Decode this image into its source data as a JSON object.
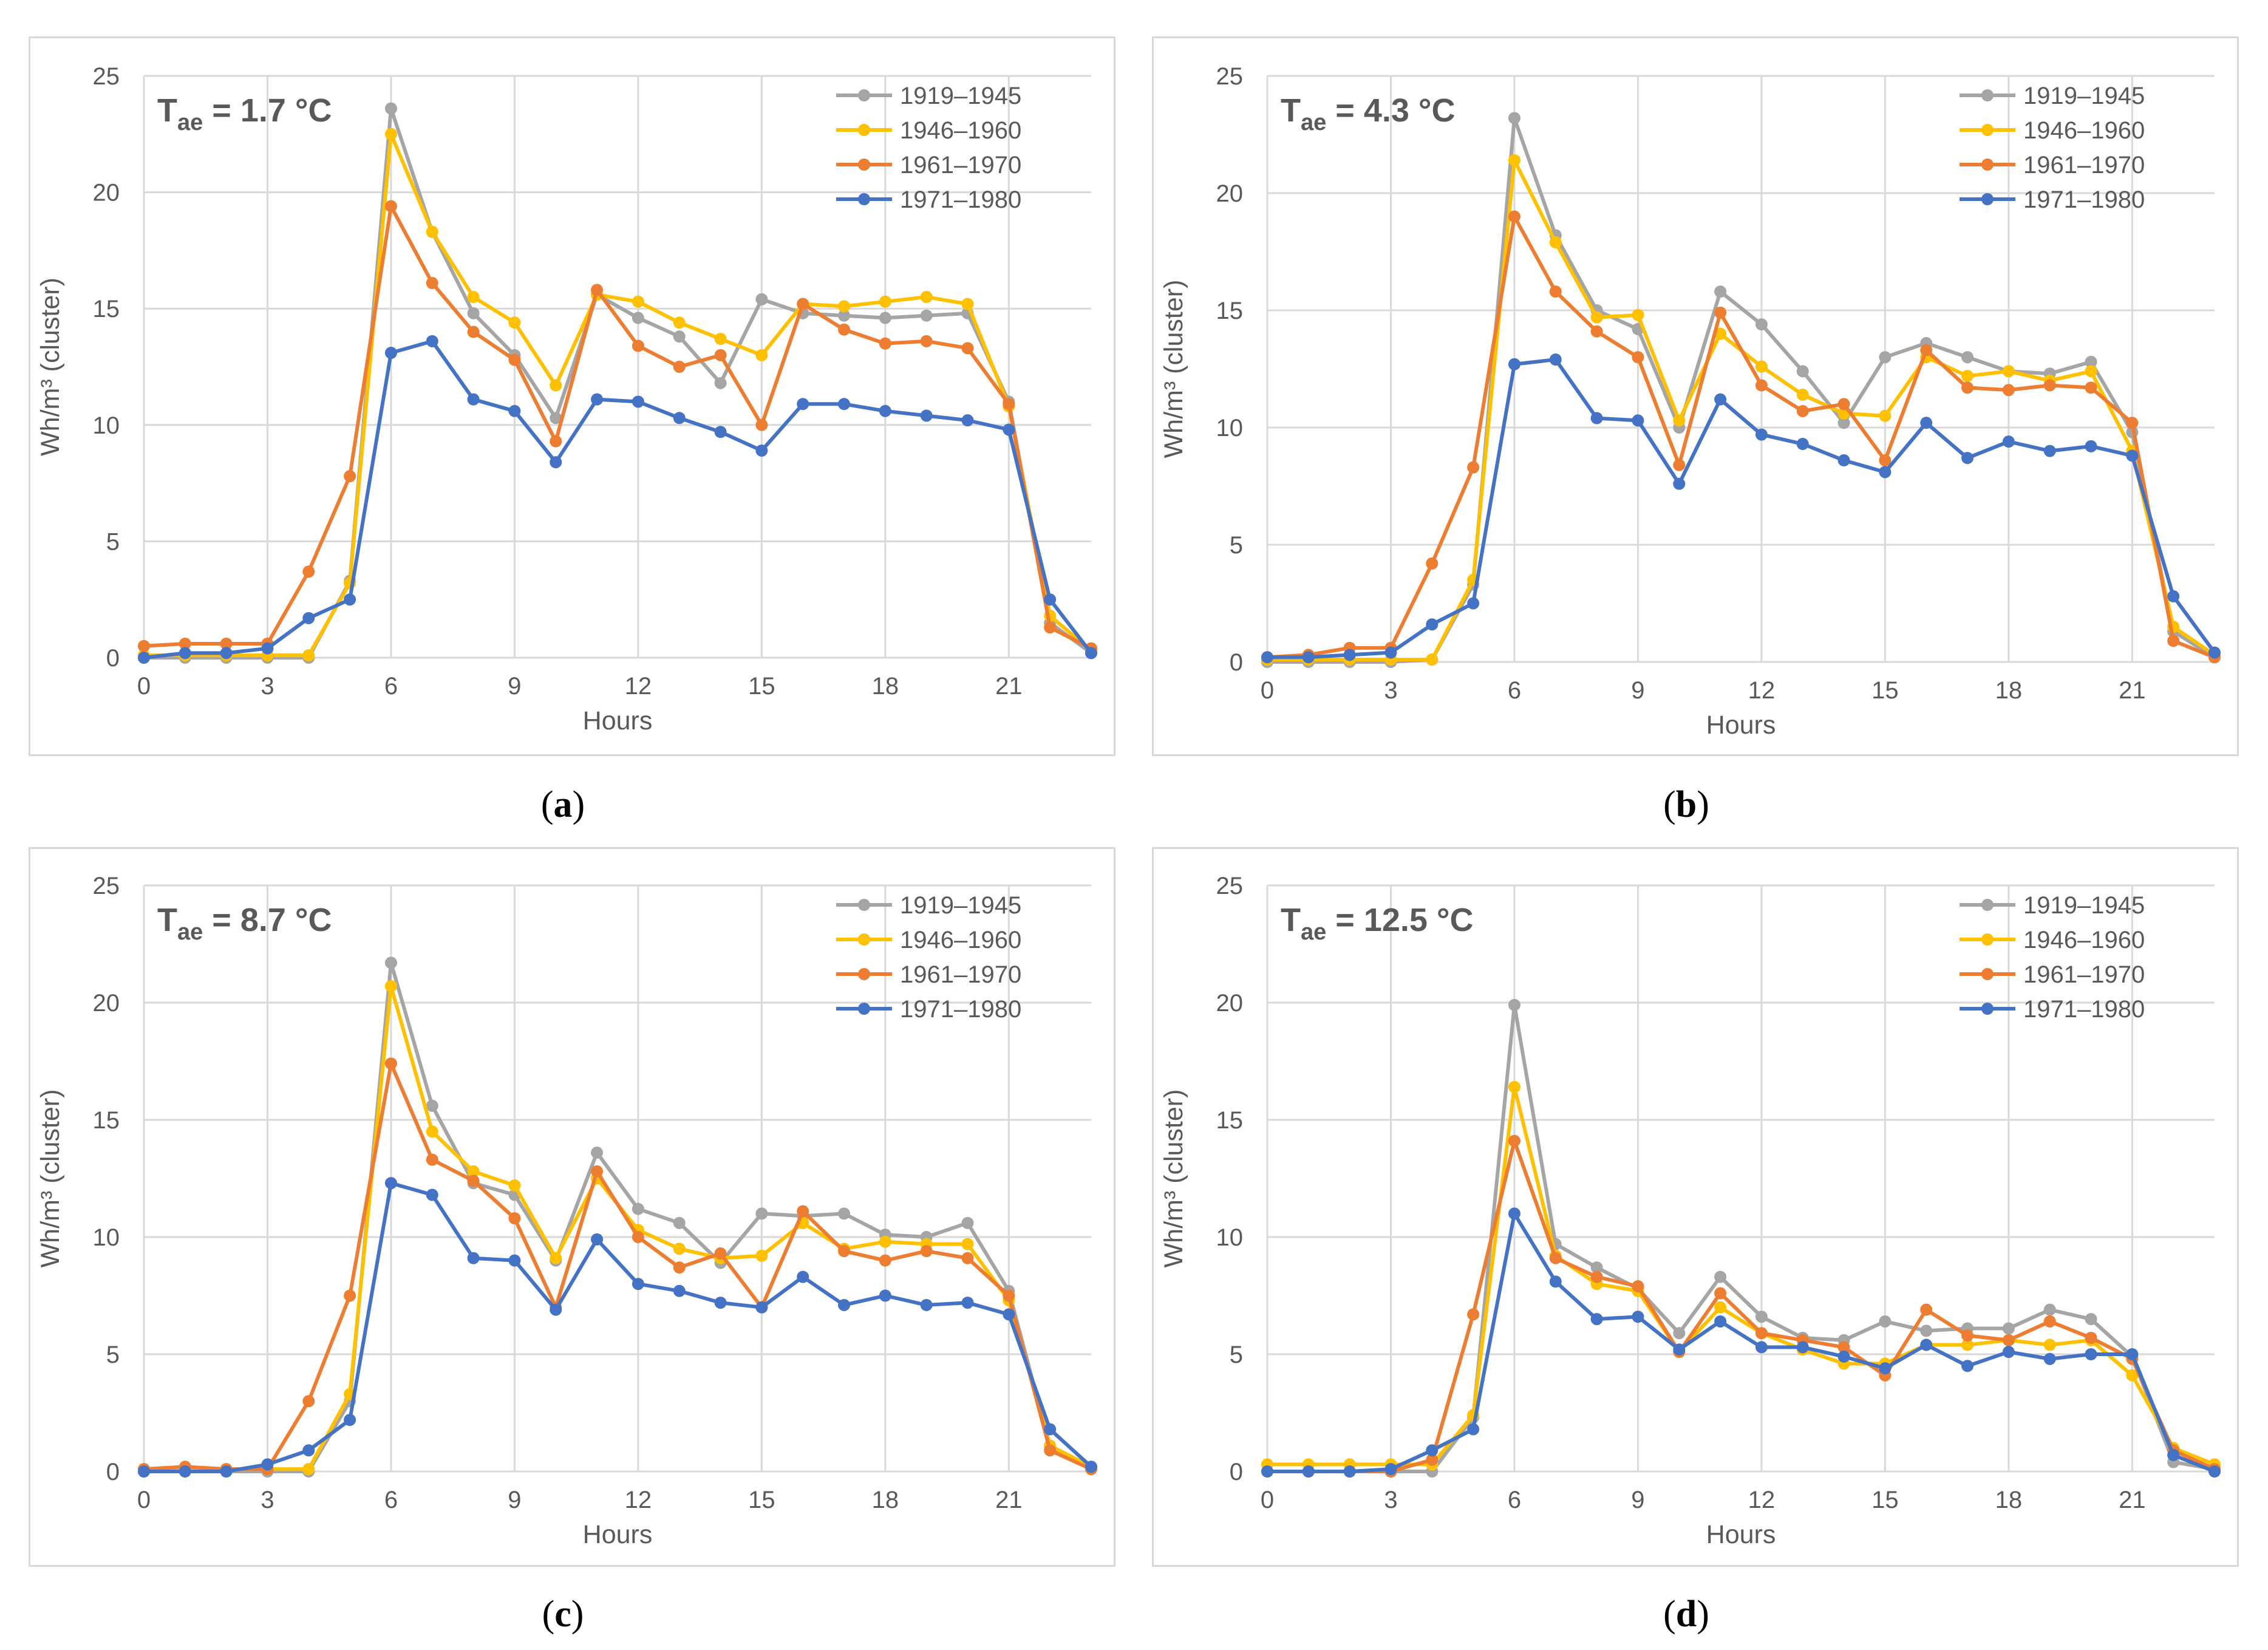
{
  "chart_data": [
    {
      "type": "line",
      "caption": "a",
      "annotation": {
        "main": "T",
        "sub": "ae",
        "rest": " = 1.7 °C"
      },
      "xlabel": "Hours",
      "ylabel": "Wh/m³ (cluster)",
      "ylim": [
        0,
        25
      ],
      "yticks": [
        0,
        5,
        10,
        15,
        20,
        25
      ],
      "xlim": [
        0,
        23
      ],
      "xticks": [
        0,
        3,
        6,
        9,
        12,
        15,
        18,
        21
      ],
      "grid": true,
      "legend": "top-right",
      "x": [
        0,
        1,
        2,
        3,
        4,
        5,
        6,
        7,
        8,
        9,
        10,
        11,
        12,
        13,
        14,
        15,
        16,
        17,
        18,
        19,
        20,
        21,
        22,
        23
      ],
      "series": [
        {
          "name": "1919–1945",
          "color": "#a5a5a5",
          "values": [
            0.0,
            0.0,
            0.0,
            0.0,
            0.0,
            3.3,
            23.6,
            18.3,
            14.8,
            13.0,
            10.3,
            15.6,
            14.6,
            13.8,
            11.8,
            15.4,
            14.8,
            14.7,
            14.6,
            14.7,
            14.8,
            11.0,
            1.5,
            0.2
          ]
        },
        {
          "name": "1946–1960",
          "color": "#ffc000",
          "values": [
            0.1,
            0.1,
            0.1,
            0.1,
            0.1,
            3.2,
            22.5,
            18.3,
            15.5,
            14.4,
            11.7,
            15.6,
            15.3,
            14.4,
            13.7,
            13.0,
            15.2,
            15.1,
            15.3,
            15.5,
            15.2,
            10.8,
            1.8,
            0.3
          ]
        },
        {
          "name": "1961–1970",
          "color": "#ed7d31",
          "values": [
            0.5,
            0.6,
            0.6,
            0.6,
            3.7,
            7.8,
            19.4,
            16.1,
            14.0,
            12.8,
            9.3,
            15.8,
            13.4,
            12.5,
            13.0,
            10.0,
            15.2,
            14.1,
            13.5,
            13.6,
            13.3,
            10.9,
            1.3,
            0.4
          ]
        },
        {
          "name": "1971–1980",
          "color": "#4472c4",
          "values": [
            0.0,
            0.2,
            0.2,
            0.4,
            1.7,
            2.5,
            13.1,
            13.6,
            11.1,
            10.6,
            8.4,
            11.1,
            11.0,
            10.3,
            9.7,
            8.9,
            10.9,
            10.9,
            10.6,
            10.4,
            10.2,
            9.8,
            2.5,
            0.2
          ]
        }
      ]
    },
    {
      "type": "line",
      "caption": "b",
      "annotation": {
        "main": "T",
        "sub": "ae",
        "rest": " = 4.3 °C"
      },
      "xlabel": "Hours",
      "ylabel": "Wh/m³ (cluster)",
      "ylim": [
        0,
        25
      ],
      "yticks": [
        0,
        5,
        10,
        15,
        20,
        25
      ],
      "xlim": [
        0,
        23
      ],
      "xticks": [
        0,
        3,
        6,
        9,
        12,
        15,
        18,
        21
      ],
      "grid": true,
      "legend": "top-right",
      "x": [
        0,
        1,
        2,
        3,
        4,
        5,
        6,
        7,
        8,
        9,
        10,
        11,
        12,
        13,
        14,
        15,
        16,
        17,
        18,
        19,
        20,
        21,
        22,
        23
      ],
      "series": [
        {
          "name": "1919–1945",
          "color": "#a5a5a5",
          "values": [
            0.0,
            0.0,
            0.0,
            0.0,
            0.1,
            3.3,
            23.2,
            18.2,
            15.0,
            14.2,
            10.0,
            15.8,
            14.4,
            12.4,
            10.2,
            13.0,
            13.6,
            13.0,
            12.4,
            12.3,
            12.8,
            9.8,
            1.3,
            0.2
          ]
        },
        {
          "name": "1946–1960",
          "color": "#ffc000",
          "values": [
            0.1,
            0.1,
            0.1,
            0.1,
            0.1,
            3.5,
            21.4,
            17.9,
            14.7,
            14.8,
            10.3,
            14.0,
            12.6,
            11.4,
            10.6,
            10.5,
            13.0,
            12.2,
            12.4,
            12.0,
            12.4,
            9.0,
            1.5,
            0.3
          ]
        },
        {
          "name": "1961–1970",
          "color": "#ed7d31",
          "values": [
            0.2,
            0.3,
            0.6,
            0.6,
            4.2,
            8.3,
            19.0,
            15.8,
            14.1,
            13.0,
            8.4,
            14.9,
            11.8,
            10.7,
            11.0,
            8.6,
            13.3,
            11.7,
            11.6,
            11.8,
            11.7,
            10.2,
            0.9,
            0.2
          ]
        },
        {
          "name": "1971–1980",
          "color": "#4472c4",
          "values": [
            0.2,
            0.2,
            0.3,
            0.4,
            1.6,
            2.5,
            12.7,
            12.9,
            10.4,
            10.3,
            7.6,
            11.2,
            9.7,
            9.3,
            8.6,
            8.1,
            10.2,
            8.7,
            9.4,
            9.0,
            9.2,
            8.8,
            2.8,
            0.4
          ]
        }
      ]
    },
    {
      "type": "line",
      "caption": "c",
      "annotation": {
        "main": "T",
        "sub": "ae",
        "rest": " = 8.7 °C"
      },
      "xlabel": "Hours",
      "ylabel": "Wh/m³ (cluster)",
      "ylim": [
        0,
        25
      ],
      "yticks": [
        0,
        5,
        10,
        15,
        20,
        25
      ],
      "xlim": [
        0,
        23
      ],
      "xticks": [
        0,
        3,
        6,
        9,
        12,
        15,
        18,
        21
      ],
      "grid": true,
      "legend": "top-right",
      "x": [
        0,
        1,
        2,
        3,
        4,
        5,
        6,
        7,
        8,
        9,
        10,
        11,
        12,
        13,
        14,
        15,
        16,
        17,
        18,
        19,
        20,
        21,
        22,
        23
      ],
      "series": [
        {
          "name": "1919–1945",
          "color": "#a5a5a5",
          "values": [
            0.0,
            0.0,
            0.0,
            0.0,
            0.0,
            3.0,
            21.7,
            15.6,
            12.3,
            11.8,
            9.0,
            13.6,
            11.2,
            10.6,
            8.9,
            11.0,
            10.9,
            11.0,
            10.1,
            10.0,
            10.6,
            7.7,
            1.1,
            0.1
          ]
        },
        {
          "name": "1946–1960",
          "color": "#ffc000",
          "values": [
            0.1,
            0.1,
            0.1,
            0.1,
            0.1,
            3.3,
            20.7,
            14.5,
            12.8,
            12.2,
            9.1,
            12.5,
            10.3,
            9.5,
            9.1,
            9.2,
            10.6,
            9.5,
            9.8,
            9.7,
            9.7,
            7.3,
            1.1,
            0.2
          ]
        },
        {
          "name": "1961–1970",
          "color": "#ed7d31",
          "values": [
            0.1,
            0.2,
            0.1,
            0.1,
            3.0,
            7.5,
            17.4,
            13.3,
            12.4,
            10.8,
            7.0,
            12.8,
            10.0,
            8.7,
            9.3,
            7.0,
            11.1,
            9.4,
            9.0,
            9.4,
            9.1,
            7.5,
            0.9,
            0.1
          ]
        },
        {
          "name": "1971–1980",
          "color": "#4472c4",
          "values": [
            0.0,
            0.0,
            0.0,
            0.3,
            0.9,
            2.2,
            12.3,
            11.8,
            9.1,
            9.0,
            6.9,
            9.9,
            8.0,
            7.7,
            7.2,
            7.0,
            8.3,
            7.1,
            7.5,
            7.1,
            7.2,
            6.7,
            1.8,
            0.2
          ]
        }
      ]
    },
    {
      "type": "line",
      "caption": "d",
      "annotation": {
        "main": "T",
        "sub": "ae",
        "rest": " = 12.5 °C"
      },
      "xlabel": "Hours",
      "ylabel": "Wh/m³ (cluster)",
      "ylim": [
        0,
        25
      ],
      "yticks": [
        0,
        5,
        10,
        15,
        20,
        25
      ],
      "xlim": [
        0,
        23
      ],
      "xticks": [
        0,
        3,
        6,
        9,
        12,
        15,
        18,
        21
      ],
      "grid": true,
      "legend": "top-right",
      "x": [
        0,
        1,
        2,
        3,
        4,
        5,
        6,
        7,
        8,
        9,
        10,
        11,
        12,
        13,
        14,
        15,
        16,
        17,
        18,
        19,
        20,
        21,
        22,
        23
      ],
      "series": [
        {
          "name": "1919–1945",
          "color": "#a5a5a5",
          "values": [
            0.0,
            0.0,
            0.0,
            0.0,
            0.0,
            2.3,
            19.9,
            9.7,
            8.7,
            7.8,
            5.9,
            8.3,
            6.6,
            5.7,
            5.6,
            6.4,
            6.0,
            6.1,
            6.1,
            6.9,
            6.5,
            4.9,
            0.4,
            0.1
          ]
        },
        {
          "name": "1946–1960",
          "color": "#ffc000",
          "values": [
            0.3,
            0.3,
            0.3,
            0.3,
            0.3,
            2.4,
            16.4,
            9.2,
            8.0,
            7.7,
            5.1,
            7.0,
            5.9,
            5.2,
            4.6,
            4.6,
            5.4,
            5.4,
            5.6,
            5.4,
            5.6,
            4.1,
            1.0,
            0.3
          ]
        },
        {
          "name": "1961–1970",
          "color": "#ed7d31",
          "values": [
            0.0,
            0.0,
            0.0,
            0.0,
            0.5,
            6.7,
            14.1,
            9.1,
            8.3,
            7.9,
            5.1,
            7.6,
            5.9,
            5.6,
            5.3,
            4.1,
            6.9,
            5.8,
            5.6,
            6.4,
            5.7,
            4.8,
            0.9,
            0.1
          ]
        },
        {
          "name": "1971–1980",
          "color": "#4472c4",
          "values": [
            0.0,
            0.0,
            0.0,
            0.1,
            0.9,
            1.8,
            11.0,
            8.1,
            6.5,
            6.6,
            5.2,
            6.4,
            5.3,
            5.3,
            4.9,
            4.4,
            5.4,
            4.5,
            5.1,
            4.8,
            5.0,
            5.0,
            0.7,
            0.0
          ]
        }
      ]
    }
  ]
}
